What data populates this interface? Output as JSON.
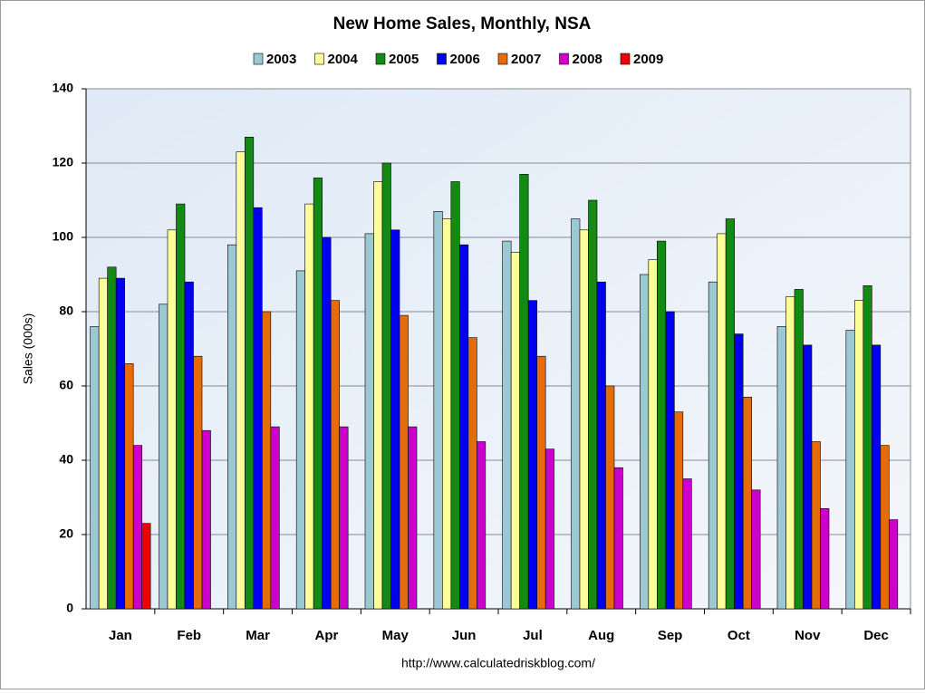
{
  "chart_data": {
    "type": "bar",
    "title": "New Home Sales, Monthly, NSA",
    "y_label": "Sales (000s)",
    "source": "http://www.calculatedriskblog.com/",
    "categories": [
      "Jan",
      "Feb",
      "Mar",
      "Apr",
      "May",
      "Jun",
      "Jul",
      "Aug",
      "Sep",
      "Oct",
      "Nov",
      "Dec"
    ],
    "series": [
      {
        "name": "2003",
        "color": "#9cc8d4",
        "values": [
          76,
          82,
          98,
          91,
          101,
          107,
          99,
          105,
          90,
          88,
          76,
          75
        ]
      },
      {
        "name": "2004",
        "color": "#ffff99",
        "values": [
          89,
          102,
          123,
          109,
          115,
          105,
          96,
          102,
          94,
          101,
          84,
          83
        ]
      },
      {
        "name": "2005",
        "color": "#138a13",
        "values": [
          92,
          109,
          127,
          116,
          120,
          115,
          117,
          110,
          99,
          105,
          86,
          87
        ]
      },
      {
        "name": "2006",
        "color": "#0000f0",
        "values": [
          89,
          88,
          108,
          100,
          102,
          98,
          83,
          88,
          80,
          74,
          71,
          71
        ]
      },
      {
        "name": "2007",
        "color": "#e46c0a",
        "values": [
          66,
          68,
          80,
          83,
          79,
          73,
          68,
          60,
          53,
          57,
          45,
          44
        ]
      },
      {
        "name": "2008",
        "color": "#cc00cc",
        "values": [
          44,
          48,
          49,
          49,
          49,
          45,
          43,
          38,
          35,
          32,
          27,
          24
        ]
      },
      {
        "name": "2009",
        "color": "#ee0000",
        "values": [
          23,
          null,
          null,
          null,
          null,
          null,
          null,
          null,
          null,
          null,
          null,
          null
        ]
      }
    ],
    "ylim": [
      0,
      140
    ],
    "yticks": [
      0,
      20,
      40,
      60,
      80,
      100,
      120,
      140
    ],
    "grid": true
  }
}
